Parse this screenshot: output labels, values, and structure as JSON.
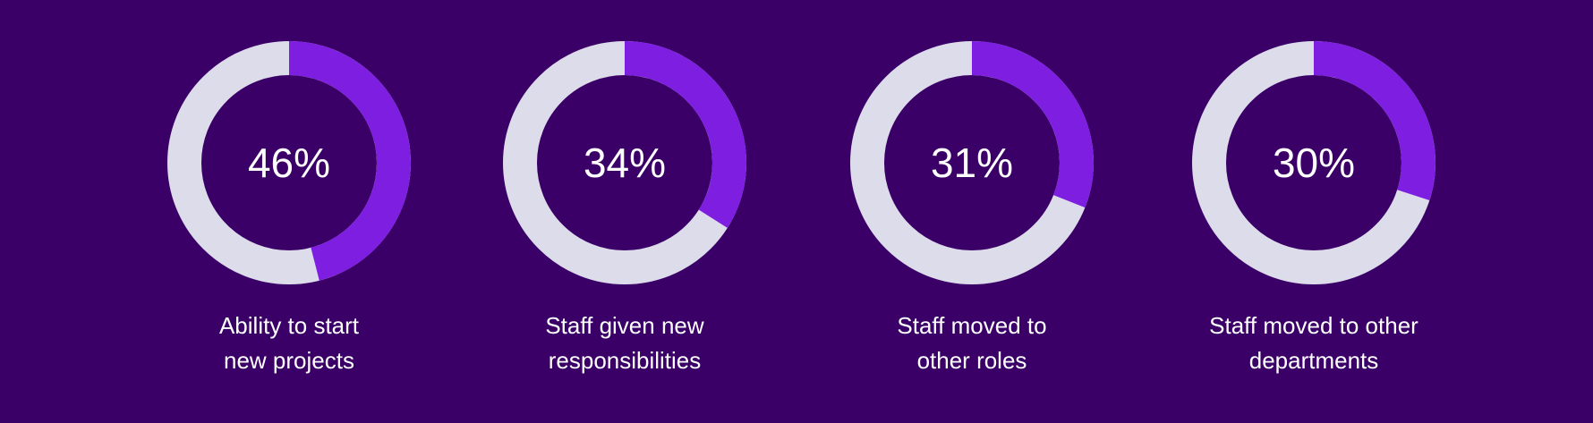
{
  "chart_data": [
    {
      "type": "donut",
      "title": "Ability to start new projects",
      "values": [
        46
      ],
      "value_labels": [
        "46%"
      ],
      "color": "#7e1ee0",
      "track_color": "#dcdcea"
    },
    {
      "type": "donut",
      "title": "Staff given new responsibilities",
      "values": [
        34
      ],
      "value_labels": [
        "34%"
      ],
      "color": "#7e1ee0",
      "track_color": "#dcdcea"
    },
    {
      "type": "donut",
      "title": "Staff moved to other roles",
      "values": [
        31
      ],
      "value_labels": [
        "31%"
      ],
      "color": "#7e1ee0",
      "track_color": "#dcdcea"
    },
    {
      "type": "donut",
      "title": "Staff moved to other departments",
      "values": [
        30
      ],
      "value_labels": [
        "30%"
      ],
      "color": "#7e1ee0",
      "track_color": "#dcdcea"
    }
  ]
}
